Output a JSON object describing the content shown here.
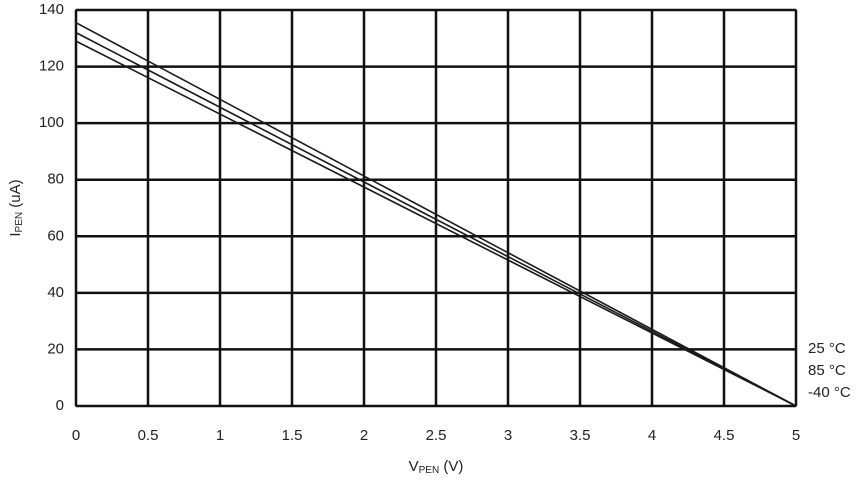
{
  "chart_data": {
    "type": "line",
    "xlabel_parts": [
      "V",
      "PEN",
      " (V)"
    ],
    "ylabel_parts": [
      "I",
      "PEN",
      " (uA)"
    ],
    "x": [
      0,
      5
    ],
    "series": [
      {
        "name": "25 °C",
        "color": "#1a1a1a",
        "values": [
          135.5,
          0
        ]
      },
      {
        "name": "85 °C",
        "color": "#1a1a1a",
        "values": [
          132,
          0
        ]
      },
      {
        "name": "-40 °C",
        "color": "#1a1a1a",
        "values": [
          129,
          0
        ]
      }
    ],
    "xlim": [
      0,
      5
    ],
    "xticks": [
      0,
      0.5,
      1,
      1.5,
      2,
      2.5,
      3,
      3.5,
      4,
      4.5,
      5
    ],
    "ylim": [
      0,
      140
    ],
    "yticks": [
      0,
      20,
      40,
      60,
      80,
      100,
      120,
      140
    ],
    "grid": true
  }
}
